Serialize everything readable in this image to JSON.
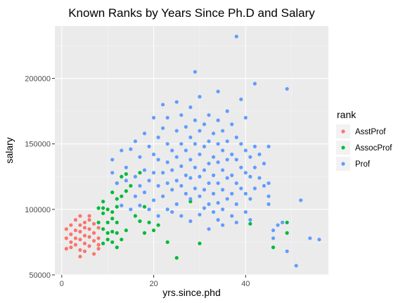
{
  "chart_data": {
    "type": "scatter",
    "title": "Known Ranks by Years Since Ph.D and Salary",
    "xlabel": "yrs.since.phd",
    "ylabel": "salary",
    "xlim": [
      -1.5,
      58
    ],
    "ylim": [
      50000,
      240000
    ],
    "xticks": [
      0,
      20,
      40
    ],
    "yticks": [
      50000,
      100000,
      150000,
      200000
    ],
    "xtick_labels": [
      "0",
      "20",
      "40"
    ],
    "ytick_labels": [
      "50000",
      "100000",
      "150000",
      "200000"
    ],
    "grid": true,
    "legend_position": "right",
    "legend_title": "rank",
    "series": [
      {
        "name": "AsstProf",
        "color": "#F8766D",
        "points": [
          [
            1,
            78000
          ],
          [
            1,
            85000
          ],
          [
            1,
            70000
          ],
          [
            2,
            88000
          ],
          [
            2,
            81000
          ],
          [
            2,
            75000
          ],
          [
            2,
            71000
          ],
          [
            3,
            92000
          ],
          [
            3,
            84000
          ],
          [
            3,
            78000
          ],
          [
            3,
            73000
          ],
          [
            4,
            95000
          ],
          [
            4,
            88000
          ],
          [
            4,
            83000
          ],
          [
            4,
            77000
          ],
          [
            4,
            69000
          ],
          [
            4,
            64000
          ],
          [
            5,
            90000
          ],
          [
            5,
            86000
          ],
          [
            5,
            80000
          ],
          [
            5,
            74000
          ],
          [
            5,
            68000
          ],
          [
            6,
            95000
          ],
          [
            6,
            92000
          ],
          [
            6,
            85000
          ],
          [
            6,
            79000
          ],
          [
            6,
            72000
          ],
          [
            7,
            89000
          ],
          [
            7,
            82000
          ],
          [
            7,
            76000
          ],
          [
            7,
            66000
          ],
          [
            8,
            86000
          ],
          [
            8,
            78000
          ],
          [
            8,
            73000
          ],
          [
            8,
            70000
          ]
        ]
      },
      {
        "name": "AssocProf",
        "color": "#00BA38",
        "points": [
          [
            8,
            101000
          ],
          [
            8,
            90000
          ],
          [
            9,
            106000
          ],
          [
            9,
            101000
          ],
          [
            9,
            97000
          ],
          [
            9,
            85000
          ],
          [
            9,
            74000
          ],
          [
            10,
            100000
          ],
          [
            10,
            90000
          ],
          [
            10,
            82000
          ],
          [
            10,
            77000
          ],
          [
            11,
            113000
          ],
          [
            11,
            98000
          ],
          [
            11,
            93000
          ],
          [
            11,
            83000
          ],
          [
            11,
            75000
          ],
          [
            12,
            120000
          ],
          [
            12,
            108000
          ],
          [
            12,
            102000
          ],
          [
            12,
            90000
          ],
          [
            12,
            82000
          ],
          [
            12,
            71000
          ],
          [
            13,
            125000
          ],
          [
            13,
            110000
          ],
          [
            13,
            77000
          ],
          [
            14,
            127000
          ],
          [
            14,
            114000
          ],
          [
            14,
            84000
          ],
          [
            15,
            118000
          ],
          [
            16,
            95000
          ],
          [
            17,
            128000
          ],
          [
            17,
            91000
          ],
          [
            18,
            102000
          ],
          [
            18,
            82000
          ],
          [
            19,
            90000
          ],
          [
            20,
            84000
          ],
          [
            21,
            88000
          ],
          [
            23,
            75000
          ],
          [
            25,
            63000
          ],
          [
            28,
            106000
          ],
          [
            30,
            74000
          ],
          [
            41,
            89000
          ],
          [
            46,
            71000
          ],
          [
            49,
            90000
          ],
          [
            49,
            82000
          ]
        ]
      },
      {
        "name": "Prof",
        "color": "#619CFF",
        "points": [
          [
            11,
            128000
          ],
          [
            11,
            138000
          ],
          [
            12,
            120000
          ],
          [
            13,
            145000
          ],
          [
            13,
            103000
          ],
          [
            14,
            122000
          ],
          [
            14,
            132000
          ],
          [
            15,
            146000
          ],
          [
            15,
            100000
          ],
          [
            16,
            125000
          ],
          [
            16,
            110000
          ],
          [
            16,
            152000
          ],
          [
            17,
            118000
          ],
          [
            17,
            140000
          ],
          [
            17,
            103000
          ],
          [
            18,
            158000
          ],
          [
            18,
            130000
          ],
          [
            18,
            113000
          ],
          [
            19,
            148000
          ],
          [
            19,
            122000
          ],
          [
            19,
            100000
          ],
          [
            20,
            170000
          ],
          [
            20,
            142000
          ],
          [
            20,
            128000
          ],
          [
            20,
            107000
          ],
          [
            21,
            155000
          ],
          [
            21,
            138000
          ],
          [
            21,
            118000
          ],
          [
            21,
            95000
          ],
          [
            22,
            180000
          ],
          [
            22,
            162000
          ],
          [
            22,
            128000
          ],
          [
            22,
            110000
          ],
          [
            23,
            170000
          ],
          [
            23,
            150000
          ],
          [
            23,
            136000
          ],
          [
            23,
            120000
          ],
          [
            23,
            100000
          ],
          [
            24,
            145000
          ],
          [
            24,
            130000
          ],
          [
            24,
            115000
          ],
          [
            24,
            98000
          ],
          [
            25,
            182000
          ],
          [
            25,
            160000
          ],
          [
            25,
            140000
          ],
          [
            25,
            122000
          ],
          [
            25,
            104000
          ],
          [
            26,
            172000
          ],
          [
            26,
            150000
          ],
          [
            26,
            133000
          ],
          [
            26,
            118000
          ],
          [
            26,
            95000
          ],
          [
            27,
            163000
          ],
          [
            27,
            145000
          ],
          [
            27,
            126000
          ],
          [
            27,
            112000
          ],
          [
            28,
            178000
          ],
          [
            28,
            155000
          ],
          [
            28,
            138000
          ],
          [
            28,
            124000
          ],
          [
            28,
            108000
          ],
          [
            28,
            91000
          ],
          [
            29,
            205000
          ],
          [
            29,
            168000
          ],
          [
            29,
            150000
          ],
          [
            29,
            132000
          ],
          [
            29,
            116000
          ],
          [
            30,
            186000
          ],
          [
            30,
            160000
          ],
          [
            30,
            142000
          ],
          [
            30,
            125000
          ],
          [
            30,
            110000
          ],
          [
            30,
            96000
          ],
          [
            31,
            165000
          ],
          [
            31,
            148000
          ],
          [
            31,
            130000
          ],
          [
            31,
            115000
          ],
          [
            31,
            101000
          ],
          [
            32,
            172000
          ],
          [
            32,
            152000
          ],
          [
            32,
            135000
          ],
          [
            32,
            120000
          ],
          [
            32,
            104000
          ],
          [
            32,
            85000
          ],
          [
            33,
            158000
          ],
          [
            33,
            140000
          ],
          [
            33,
            126000
          ],
          [
            33,
            112000
          ],
          [
            33,
            98000
          ],
          [
            34,
            190000
          ],
          [
            34,
            168000
          ],
          [
            34,
            150000
          ],
          [
            34,
            136000
          ],
          [
            34,
            120000
          ],
          [
            34,
            105000
          ],
          [
            34,
            92000
          ],
          [
            35,
            160000
          ],
          [
            35,
            145000
          ],
          [
            35,
            130000
          ],
          [
            35,
            115000
          ],
          [
            35,
            100000
          ],
          [
            35,
            88000
          ],
          [
            36,
            175000
          ],
          [
            36,
            152000
          ],
          [
            36,
            138000
          ],
          [
            36,
            124000
          ],
          [
            36,
            108000
          ],
          [
            37,
            165000
          ],
          [
            37,
            142000
          ],
          [
            37,
            126000
          ],
          [
            37,
            112000
          ],
          [
            37,
            95000
          ],
          [
            38,
            232000
          ],
          [
            38,
            155000
          ],
          [
            38,
            138000
          ],
          [
            38,
            120000
          ],
          [
            38,
            104000
          ],
          [
            38,
            90000
          ],
          [
            39,
            184000
          ],
          [
            39,
            150000
          ],
          [
            39,
            132000
          ],
          [
            39,
            116000
          ],
          [
            40,
            170000
          ],
          [
            40,
            145000
          ],
          [
            40,
            128000
          ],
          [
            40,
            112000
          ],
          [
            40,
            98000
          ],
          [
            41,
            140000
          ],
          [
            41,
            125000
          ],
          [
            41,
            108000
          ],
          [
            41,
            92000
          ],
          [
            42,
            196000
          ],
          [
            42,
            148000
          ],
          [
            42,
            132000
          ],
          [
            42,
            116000
          ],
          [
            43,
            142000
          ],
          [
            43,
            124000
          ],
          [
            44,
            135000
          ],
          [
            44,
            118000
          ],
          [
            45,
            148000
          ],
          [
            45,
            120000
          ],
          [
            45,
            110000
          ],
          [
            45,
            104000
          ],
          [
            46,
            84000
          ],
          [
            46,
            78000
          ],
          [
            47,
            88000
          ],
          [
            48,
            90000
          ],
          [
            49,
            192000
          ],
          [
            49,
            68000
          ],
          [
            51,
            57000
          ],
          [
            52,
            107000
          ],
          [
            54,
            78000
          ],
          [
            56,
            77000
          ]
        ]
      }
    ]
  }
}
